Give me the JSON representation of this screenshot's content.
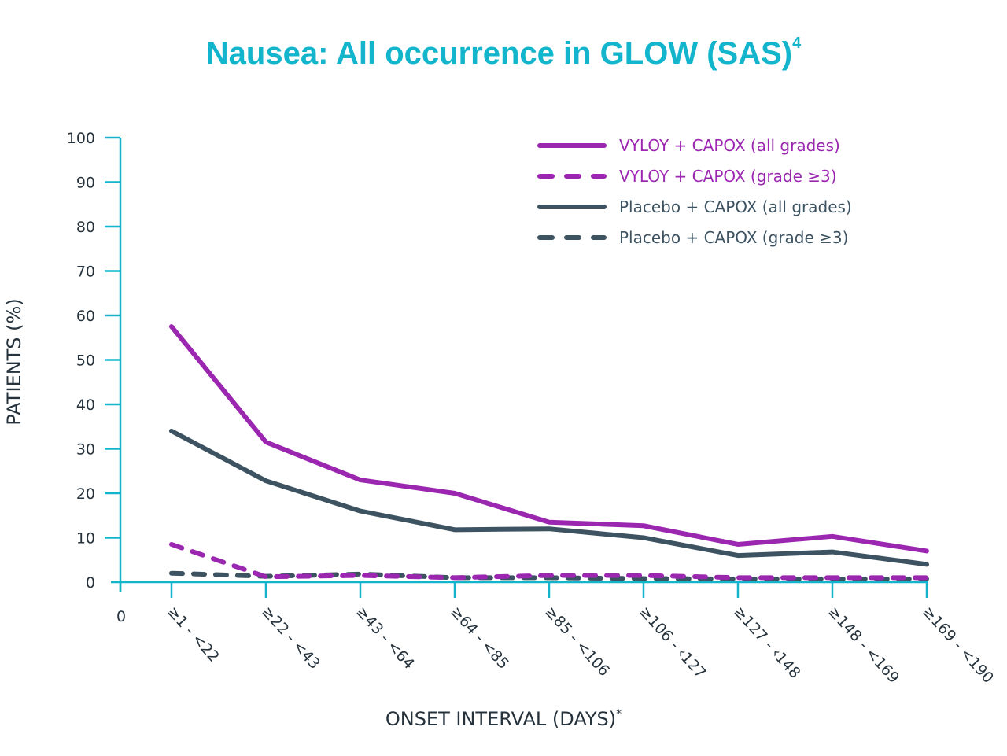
{
  "chart_data": {
    "type": "line",
    "title": "Nausea: All occurrence in GLOW (SAS)",
    "title_superscript": "4",
    "xlabel": "ONSET INTERVAL (DAYS)",
    "xlabel_superscript": "*",
    "ylabel": "PATIENTS (%)",
    "ylim": [
      0,
      100
    ],
    "yticks": [
      "0",
      "10",
      "20",
      "30",
      "40",
      "50",
      "60",
      "70",
      "80",
      "90",
      "100"
    ],
    "x_origin_label": "0",
    "categories": [
      "≥1 - <22",
      "≥22 - <43",
      "≥43 - <64",
      "≥64 - <85",
      "≥85 - <106",
      "≥106 - ‹127",
      "≥127 - ‹148",
      "≥148 - <169",
      "≥169 - <190"
    ],
    "grid": false,
    "legend_position": "top-right",
    "series": [
      {
        "name": "VYLOY + CAPOX (all grades)",
        "color": "#9b27b0",
        "dashed": false,
        "values": [
          57.5,
          31.5,
          23,
          20,
          13.5,
          12.7,
          8.5,
          10.3,
          7
        ]
      },
      {
        "name": "VYLOY + CAPOX (grade ≥3)",
        "color": "#9b27b0",
        "dashed": true,
        "values": [
          8.5,
          1.2,
          1.5,
          1,
          1.5,
          1.5,
          1,
          1,
          1
        ]
      },
      {
        "name": "Placebo + CAPOX (all grades)",
        "color": "#3d5361",
        "dashed": false,
        "values": [
          34,
          22.8,
          16,
          11.8,
          12,
          10,
          6,
          6.8,
          4
        ]
      },
      {
        "name": "Placebo + CAPOX (grade ≥3)",
        "color": "#3d5361",
        "dashed": true,
        "values": [
          2,
          1.3,
          1.8,
          1,
          1,
          0.8,
          0.7,
          0.7,
          0.7
        ]
      }
    ],
    "axis_color": "#12b5cb"
  }
}
